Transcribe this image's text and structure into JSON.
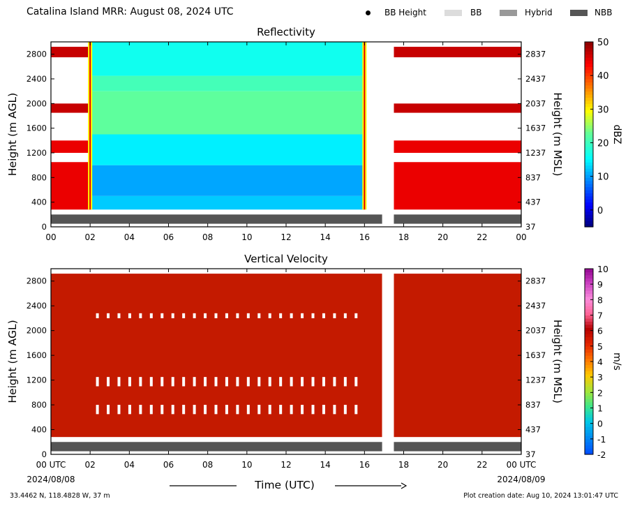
{
  "header": {
    "title": "Catalina Island MRR:  August 08, 2024 UTC",
    "legend": [
      {
        "label": "BB Height",
        "kind": "dot",
        "color": "#000000"
      },
      {
        "label": "BB",
        "kind": "swatch",
        "color": "#dcdcdc"
      },
      {
        "label": "Hybrid",
        "kind": "swatch",
        "color": "#999999"
      },
      {
        "label": "NBB",
        "kind": "swatch",
        "color": "#555555"
      }
    ]
  },
  "footer": {
    "coords": "33.4462 N, 118.4828 W, 37 m",
    "xlabel": "Time (UTC)",
    "creation": "Plot creation date: Aug 10, 2024 13:01:47 UTC",
    "date_start": "2024/08/08",
    "date_end": "2024/08/09"
  },
  "colors": {
    "nbb_bar": "#555555",
    "vv_fill": "#c41a00"
  },
  "chart_data": [
    {
      "type": "heatmap",
      "title": "Reflectivity",
      "ylabel": "Height (m AGL)",
      "ylabel_right": "Height (m MSL)",
      "ylim": [
        0,
        3000
      ],
      "xlim": [
        0,
        24
      ],
      "x_tick_labels": [
        "00",
        "02",
        "04",
        "06",
        "08",
        "10",
        "12",
        "14",
        "16",
        "18",
        "20",
        "22",
        "00"
      ],
      "y_ticks": [
        0,
        400,
        800,
        1200,
        1600,
        2000,
        2400,
        2800
      ],
      "y_ticks_right": [
        37,
        437,
        837,
        1237,
        1637,
        2037,
        2437,
        2837
      ],
      "colorbar": {
        "label": "dBZ",
        "min": -5,
        "max": 50,
        "ticks": [
          0,
          10,
          20,
          30,
          40,
          50
        ]
      },
      "data_gaps": [
        [
          16.9,
          17.5
        ]
      ],
      "nbb_band": {
        "from_m": 50,
        "to_m": 200,
        "type": "NBB"
      },
      "regimes": [
        {
          "t_start": 0,
          "t_end": 2.0,
          "description_layers": [
            {
              "from": 280,
              "to": 1050,
              "dbz": 44
            },
            {
              "from": 1200,
              "to": 1400,
              "dbz": 44
            },
            {
              "from": 1850,
              "to": 2000,
              "dbz": 46
            },
            {
              "from": 2750,
              "to": 2920,
              "dbz": 46
            }
          ]
        },
        {
          "t_start": 2.0,
          "t_end": 16.0,
          "description_layers": [
            {
              "from": 280,
              "to": 500,
              "dbz": 12
            },
            {
              "from": 500,
              "to": 1000,
              "dbz": 10
            },
            {
              "from": 1000,
              "to": 1500,
              "dbz": 14
            },
            {
              "from": 1500,
              "to": 2200,
              "dbz": 22
            },
            {
              "from": 2200,
              "to": 2450,
              "dbz": 20
            },
            {
              "from": 2450,
              "to": 3000,
              "dbz": 16
            }
          ]
        },
        {
          "t_start": 17.5,
          "t_end": 24,
          "description_layers": [
            {
              "from": 280,
              "to": 1050,
              "dbz": 44
            },
            {
              "from": 1200,
              "to": 1400,
              "dbz": 44
            },
            {
              "from": 1850,
              "to": 2000,
              "dbz": 46
            },
            {
              "from": 2750,
              "to": 2920,
              "dbz": 46
            }
          ]
        }
      ]
    },
    {
      "type": "heatmap",
      "title": "Vertical Velocity",
      "ylabel": "Height (m AGL)",
      "ylabel_right": "Height (m MSL)",
      "ylim": [
        0,
        3000
      ],
      "xlim": [
        0,
        24
      ],
      "x_tick_labels": [
        "00 UTC",
        "02",
        "04",
        "06",
        "08",
        "10",
        "12",
        "14",
        "16",
        "18",
        "20",
        "22",
        "00 UTC"
      ],
      "y_ticks": [
        0,
        400,
        800,
        1200,
        1600,
        2000,
        2400,
        2800
      ],
      "y_ticks_right": [
        37,
        437,
        837,
        1237,
        1637,
        2037,
        2437,
        2837
      ],
      "colorbar": {
        "label": "m/s",
        "min": -2,
        "max": 10,
        "ticks": [
          -2,
          -1,
          0,
          1,
          2,
          3,
          4,
          5,
          6,
          7,
          8,
          9,
          10
        ]
      },
      "data_gaps": [
        [
          16.9,
          17.5
        ]
      ],
      "nbb_band": {
        "from_m": 50,
        "to_m": 200,
        "type": "NBB"
      },
      "value_m_s": 6,
      "data_extent_m": [
        280,
        2920
      ]
    }
  ]
}
